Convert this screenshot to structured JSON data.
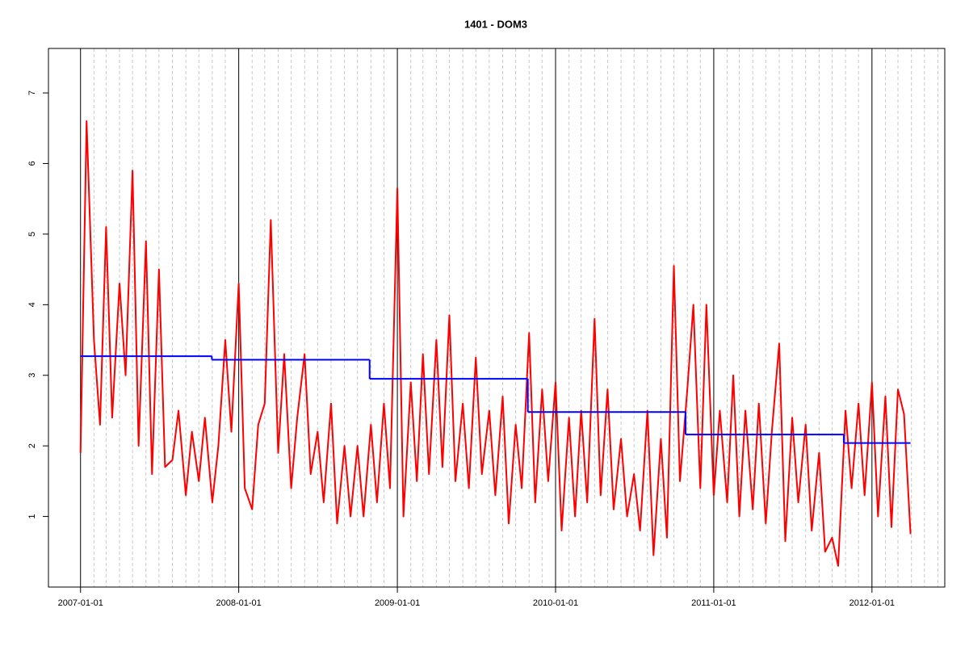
{
  "chart_data": {
    "type": "line",
    "title": "1401 - DOM3",
    "xlim": [
      "2006-10-19",
      "2012-06-17"
    ],
    "xticks": [
      "2007-01-01",
      "2008-01-01",
      "2009-01-01",
      "2010-01-01",
      "2011-01-01",
      "2012-01-01"
    ],
    "x_minor_ticks": [
      "2007-02-01",
      "2007-03-01",
      "2007-04-01",
      "2007-05-01",
      "2007-06-01",
      "2007-07-01",
      "2007-08-01",
      "2007-09-01",
      "2007-10-01",
      "2007-11-01",
      "2007-12-01",
      "2008-02-01",
      "2008-03-01",
      "2008-04-01",
      "2008-05-01",
      "2008-06-01",
      "2008-07-01",
      "2008-08-01",
      "2008-09-01",
      "2008-10-01",
      "2008-11-01",
      "2008-12-01",
      "2009-02-01",
      "2009-03-01",
      "2009-04-01",
      "2009-05-01",
      "2009-06-01",
      "2009-07-01",
      "2009-08-01",
      "2009-09-01",
      "2009-10-01",
      "2009-11-01",
      "2009-12-01",
      "2010-02-01",
      "2010-03-01",
      "2010-04-01",
      "2010-05-01",
      "2010-06-01",
      "2010-07-01",
      "2010-08-01",
      "2010-09-01",
      "2010-10-01",
      "2010-11-01",
      "2010-12-01",
      "2011-02-01",
      "2011-03-01",
      "2011-04-01",
      "2011-05-01",
      "2011-06-01",
      "2011-07-01",
      "2011-08-01",
      "2011-09-01",
      "2011-10-01",
      "2011-11-01",
      "2011-12-01",
      "2012-02-01",
      "2012-03-01",
      "2012-04-01",
      "2012-05-01",
      "2012-06-01"
    ],
    "ylim": [
      0,
      7.63
    ],
    "yticks": [
      1,
      2,
      3,
      4,
      5,
      6,
      7
    ],
    "series": [
      {
        "color": "#ff0000",
        "step": false,
        "x": [
          "2007-01-01",
          "2007-01-15",
          "2007-02-01",
          "2007-02-15",
          "2007-03-01",
          "2007-03-15",
          "2007-04-01",
          "2007-04-15",
          "2007-05-01",
          "2007-05-15",
          "2007-06-01",
          "2007-06-15",
          "2007-07-01",
          "2007-07-15",
          "2007-08-01",
          "2007-08-15",
          "2007-09-01",
          "2007-09-15",
          "2007-10-01",
          "2007-10-15",
          "2007-11-01",
          "2007-11-15",
          "2007-12-01",
          "2007-12-15",
          "2008-01-01",
          "2008-01-15",
          "2008-02-01",
          "2008-02-15",
          "2008-03-01",
          "2008-03-15",
          "2008-04-01",
          "2008-04-15",
          "2008-05-01",
          "2008-05-15",
          "2008-06-01",
          "2008-06-15",
          "2008-07-01",
          "2008-07-15",
          "2008-08-01",
          "2008-08-15",
          "2008-09-01",
          "2008-09-15",
          "2008-10-01",
          "2008-10-15",
          "2008-11-01",
          "2008-11-15",
          "2008-12-01",
          "2008-12-15",
          "2009-01-01",
          "2009-01-15",
          "2009-02-01",
          "2009-02-15",
          "2009-03-01",
          "2009-03-15",
          "2009-04-01",
          "2009-04-15",
          "2009-05-01",
          "2009-05-15",
          "2009-06-01",
          "2009-06-15",
          "2009-07-01",
          "2009-07-15",
          "2009-08-01",
          "2009-08-15",
          "2009-09-01",
          "2009-09-15",
          "2009-10-01",
          "2009-10-15",
          "2009-11-01",
          "2009-11-15",
          "2009-12-01",
          "2009-12-15",
          "2010-01-01",
          "2010-01-15",
          "2010-02-01",
          "2010-02-15",
          "2010-03-01",
          "2010-03-15",
          "2010-04-01",
          "2010-04-15",
          "2010-05-01",
          "2010-05-15",
          "2010-06-01",
          "2010-06-15",
          "2010-07-01",
          "2010-07-15",
          "2010-08-01",
          "2010-08-15",
          "2010-09-01",
          "2010-09-15",
          "2010-10-01",
          "2010-10-15",
          "2010-11-01",
          "2010-11-15",
          "2010-12-01",
          "2010-12-15",
          "2011-01-01",
          "2011-01-15",
          "2011-02-01",
          "2011-02-15",
          "2011-03-01",
          "2011-03-15",
          "2011-04-01",
          "2011-04-15",
          "2011-05-01",
          "2011-05-15",
          "2011-06-01",
          "2011-06-15",
          "2011-07-01",
          "2011-07-15",
          "2011-08-01",
          "2011-08-15",
          "2011-09-01",
          "2011-09-15",
          "2011-10-01",
          "2011-10-15",
          "2011-11-01",
          "2011-11-15",
          "2011-12-01",
          "2011-12-15",
          "2012-01-01",
          "2012-01-15",
          "2012-02-01",
          "2012-02-15",
          "2012-03-01",
          "2012-03-15",
          "2012-03-30"
        ],
        "values": [
          1.9,
          6.6,
          3.5,
          2.3,
          5.1,
          2.4,
          4.3,
          3.0,
          5.9,
          2.0,
          4.9,
          1.6,
          4.5,
          1.7,
          1.8,
          2.5,
          1.3,
          2.2,
          1.5,
          2.4,
          1.2,
          2.0,
          3.5,
          2.2,
          4.3,
          1.4,
          1.1,
          2.3,
          2.6,
          5.2,
          1.9,
          3.3,
          1.4,
          2.4,
          3.3,
          1.6,
          2.2,
          1.2,
          2.6,
          0.9,
          2.0,
          1.0,
          2.0,
          1.0,
          2.3,
          1.2,
          2.6,
          1.4,
          5.65,
          1.0,
          2.9,
          1.5,
          3.3,
          1.6,
          3.5,
          1.7,
          3.85,
          1.5,
          2.6,
          1.4,
          3.25,
          1.6,
          2.5,
          1.3,
          2.7,
          0.9,
          2.3,
          1.4,
          3.6,
          1.2,
          2.8,
          1.5,
          2.9,
          0.8,
          2.4,
          1.0,
          2.5,
          1.2,
          3.8,
          1.3,
          2.8,
          1.1,
          2.1,
          1.0,
          1.6,
          0.8,
          2.5,
          0.45,
          2.1,
          0.7,
          4.55,
          1.5,
          2.8,
          4.0,
          1.4,
          4.0,
          1.3,
          2.5,
          1.2,
          3.0,
          1.0,
          2.5,
          1.1,
          2.6,
          0.9,
          2.2,
          3.45,
          0.65,
          2.4,
          1.2,
          2.3,
          0.8,
          1.9,
          0.5,
          0.7,
          0.3,
          2.5,
          1.4,
          2.6,
          1.3,
          2.9,
          1.0,
          2.7,
          0.85,
          2.8,
          2.45,
          0.75
        ]
      },
      {
        "color": "#0000ff",
        "step": true,
        "x": [
          "2007-01-01",
          "2007-10-31",
          "2008-10-29",
          "2009-10-29",
          "2010-10-28",
          "2011-10-28",
          "2012-03-30"
        ],
        "values": [
          3.27,
          3.22,
          2.95,
          2.48,
          2.16,
          2.04,
          2.04
        ]
      }
    ]
  }
}
